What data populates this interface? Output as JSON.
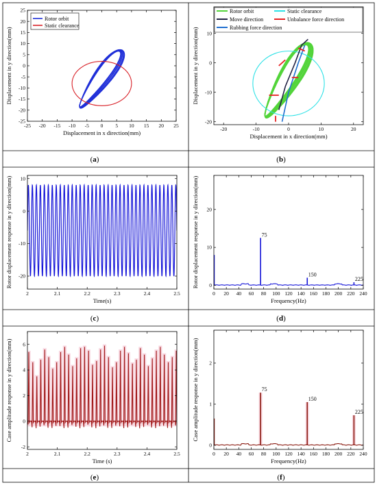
{
  "panels": [
    {
      "id": "a",
      "caption": "a",
      "chart_data": {
        "type": "scatter",
        "title": "",
        "xlabel": "Displacement in x direction(mm)",
        "ylabel": "Displacement in y direction(mm)",
        "xlim": [
          -25,
          25
        ],
        "ylim": [
          -25,
          25
        ],
        "xticks": [
          -25,
          -20,
          -15,
          -10,
          -5,
          0,
          5,
          10,
          15,
          20,
          25
        ],
        "yticks": [
          -25,
          -20,
          -15,
          -10,
          -5,
          0,
          5,
          10,
          15,
          20,
          25
        ],
        "legend": "top-left",
        "series": [
          {
            "name": "Rotor orbit",
            "color": "#1f2fd8",
            "kind": "orbit",
            "cx": -0.5,
            "cy": -6,
            "amp_major": 14.5,
            "amp_minor": 2.6,
            "angle_deg": 62
          },
          {
            "name": "Static clearance",
            "color": "#d81f26",
            "kind": "circle",
            "cx": 0,
            "cy": -8,
            "r": 10
          }
        ]
      }
    },
    {
      "id": "b",
      "caption": "b",
      "chart_data": {
        "type": "scatter",
        "title": "",
        "xlabel": "Displacement in x direction(mm)",
        "ylabel": "Displacement in y direction(mm)",
        "xlim": [
          -23,
          23
        ],
        "ylim": [
          -21,
          19
        ],
        "xticks": [
          -20,
          -10,
          0,
          10,
          20
        ],
        "yticks": [
          -20,
          -10,
          0,
          10
        ],
        "legend": "top",
        "legend_entries": [
          {
            "name": "Rotor orbit",
            "color": "#52d43a"
          },
          {
            "name": "Static clearance",
            "color": "#2ce1e6"
          },
          {
            "name": "Move direction",
            "color": "#222244"
          },
          {
            "name": "Unbalance force direction",
            "color": "#e82020"
          },
          {
            "name": "Rubbing force direction",
            "color": "#1e6fd0"
          }
        ],
        "series": [
          {
            "name": "Rotor orbit",
            "color": "#52d43a",
            "kind": "orbit",
            "cx": -0.5,
            "cy": -6,
            "amp_major": 14,
            "amp_minor": 2.8,
            "angle_deg": 62
          },
          {
            "name": "Static clearance",
            "color": "#2ce1e6",
            "kind": "circle",
            "cx": 0,
            "cy": -7,
            "r": 11
          }
        ]
      }
    },
    {
      "id": "c",
      "caption": "c",
      "chart_data": {
        "type": "line",
        "title": "",
        "xlabel": "Time(s)",
        "ylabel": "Rotor displacement response in y direction(mm)",
        "xlim": [
          2.0,
          2.5
        ],
        "ylim": [
          -24,
          11
        ],
        "xticks": [
          2.0,
          2.1,
          2.2,
          2.3,
          2.4,
          2.5
        ],
        "yticks": [
          -20,
          -10,
          0,
          10
        ],
        "series": [
          {
            "name": "",
            "color": "#1414d8",
            "kind": "sine",
            "freq_hz": 75,
            "max": 8,
            "min": -20
          }
        ]
      }
    },
    {
      "id": "d",
      "caption": "d",
      "chart_data": {
        "type": "line",
        "title": "",
        "xlabel": "Frequency(Hz)",
        "ylabel": "Rotor displacement response in y direction(mm)",
        "xlim": [
          0,
          240
        ],
        "ylim": [
          -1,
          29
        ],
        "xticks": [
          0,
          20,
          40,
          60,
          80,
          100,
          120,
          140,
          160,
          180,
          200,
          220,
          240
        ],
        "yticks": [
          0,
          10,
          20
        ],
        "annotations": [
          "75",
          "150",
          "225"
        ],
        "series": [
          {
            "name": "",
            "color": "#1414d8",
            "kind": "spectrum",
            "peaks": [
              {
                "x": 0.5,
                "y": 8
              },
              {
                "x": 75,
                "y": 12.5
              },
              {
                "x": 150,
                "y": 2
              },
              {
                "x": 225,
                "y": 0.8
              }
            ]
          }
        ]
      }
    },
    {
      "id": "e",
      "caption": "e",
      "chart_data": {
        "type": "line",
        "title": "",
        "xlabel": "Time (s)",
        "ylabel": "Case amplitude response in y direction(mm)",
        "xlim": [
          2.0,
          2.5
        ],
        "ylim": [
          -2.2,
          7
        ],
        "xticks": [
          2.0,
          2.1,
          2.2,
          2.3,
          2.4,
          2.5
        ],
        "yticks": [
          -2,
          0,
          2,
          4,
          6
        ],
        "series": [
          {
            "name": "",
            "color": "#a01818",
            "kind": "spikes",
            "freq_hz": 75,
            "heights": [
              5.4,
              4.6,
              3.5,
              4.8,
              5.6,
              5.0,
              4.1,
              4.6,
              5.4,
              5.8,
              5.2,
              4.3,
              4.9,
              5.7,
              5.8,
              5.5,
              4.4,
              4.7,
              5.6,
              5.9,
              5.0,
              4.2,
              4.6,
              5.5,
              5.8,
              5.3,
              4.5,
              4.8,
              5.7,
              5.2,
              4.3,
              4.9,
              5.5,
              5.8,
              5.2,
              4.6,
              5.0,
              5.5
            ]
          }
        ]
      }
    },
    {
      "id": "f",
      "caption": "f",
      "chart_data": {
        "type": "line",
        "title": "",
        "xlabel": "Frequency(Hz)",
        "ylabel": "Case amplitude response in y direction(mm)",
        "xlim": [
          0,
          240
        ],
        "ylim": [
          -0.1,
          2.8
        ],
        "xticks": [
          0,
          20,
          40,
          60,
          80,
          100,
          120,
          140,
          160,
          180,
          200,
          220,
          240
        ],
        "yticks": [
          0,
          1,
          2
        ],
        "annotations": [
          "75",
          "150",
          "225"
        ],
        "series": [
          {
            "name": "",
            "color": "#8a1a10",
            "kind": "spectrum",
            "peaks": [
              {
                "x": 0.5,
                "y": 0.65
              },
              {
                "x": 75,
                "y": 1.28
              },
              {
                "x": 150,
                "y": 1.05
              },
              {
                "x": 225,
                "y": 0.73
              }
            ]
          }
        ]
      }
    }
  ]
}
